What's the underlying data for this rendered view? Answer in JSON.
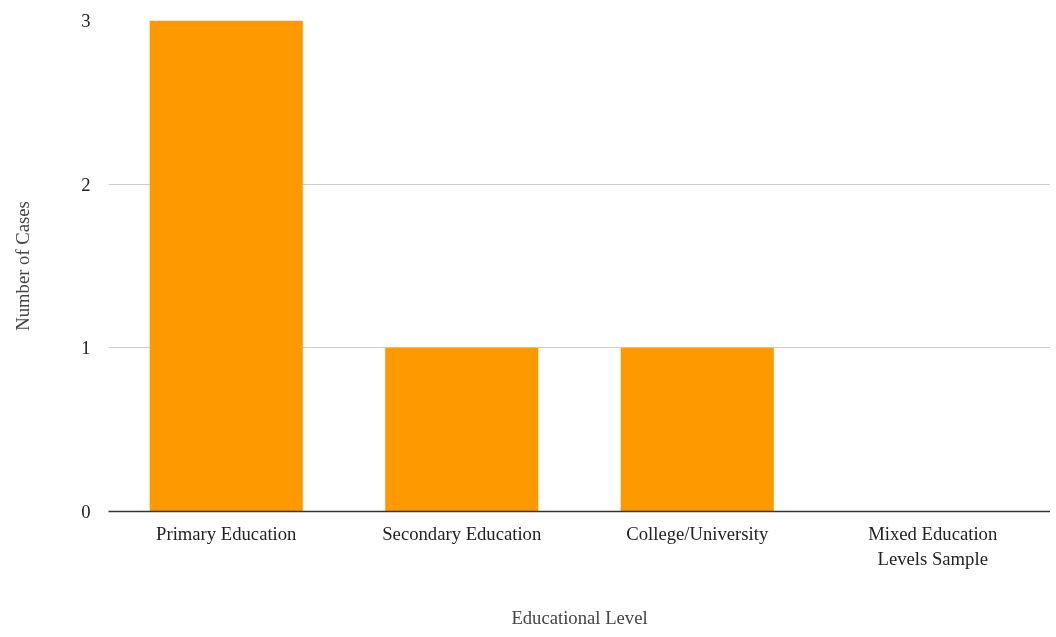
{
  "chart_data": {
    "type": "bar",
    "xlabel": "Educational Level",
    "ylabel": "Number of Cases",
    "categories": [
      "Primary Education",
      "Secondary Education",
      "College/University",
      "Mixed Education Levels Sample"
    ],
    "values": [
      3,
      1,
      1,
      0
    ],
    "color": "#ff9900",
    "ylim": [
      0,
      3
    ],
    "yticks": [
      0,
      1,
      2,
      3
    ],
    "grid": "y"
  }
}
